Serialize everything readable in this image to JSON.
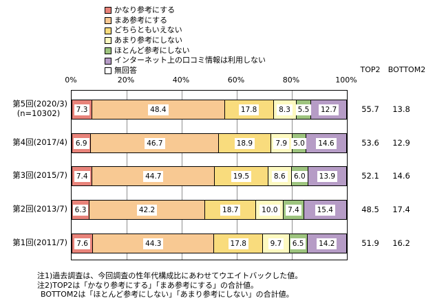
{
  "chart": {
    "legend": [
      {
        "label": "かなり参考にする",
        "color": "#e8837a"
      },
      {
        "label": "まあ参考にする",
        "color": "#f8c993"
      },
      {
        "label": "どちらともいえない",
        "color": "#f9dc7d"
      },
      {
        "label": "あまり参考にしない",
        "color": "#fdf9c0"
      },
      {
        "label": "ほとんど参考にしない",
        "color": "#9ec47f"
      },
      {
        "label": "インターネット上の口コミ情報は利用しない",
        "color": "#b69cc6"
      },
      {
        "label": "無回答",
        "color": "#ffffff"
      }
    ],
    "axis_ticks": [
      "0%",
      "20%",
      "40%",
      "60%",
      "80%",
      "100%"
    ],
    "summary_headers": {
      "top2": "TOP2",
      "bottom2": "BOTTOM2"
    },
    "rows": [
      {
        "label": "第5回(2020/3)",
        "sublabel": "(n=10302)",
        "segments": [
          "7.3",
          "48.4",
          "17.8",
          "8.3",
          "5.5",
          "12.7"
        ],
        "top2": "55.7",
        "bottom2": "13.8"
      },
      {
        "label": "第4回(2017/4)",
        "sublabel": "",
        "segments": [
          "6.9",
          "46.7",
          "18.9",
          "7.9",
          "5.0",
          "14.6"
        ],
        "top2": "53.6",
        "bottom2": "12.9"
      },
      {
        "label": "第3回(2015/7)",
        "sublabel": "",
        "segments": [
          "7.4",
          "44.7",
          "19.5",
          "8.6",
          "6.0",
          "13.9"
        ],
        "top2": "52.1",
        "bottom2": "14.6"
      },
      {
        "label": "第2回(2013/7)",
        "sublabel": "",
        "segments": [
          "6.3",
          "42.2",
          "18.7",
          "10.0",
          "7.4",
          "15.4"
        ],
        "top2": "48.5",
        "bottom2": "17.4"
      },
      {
        "label": "第1回(2011/7)",
        "sublabel": "",
        "segments": [
          "7.6",
          "44.3",
          "17.8",
          "9.7",
          "6.5",
          "14.2"
        ],
        "top2": "51.9",
        "bottom2": "16.2"
      }
    ],
    "footnotes": [
      "注1)過去調査は、今回調査の性年代構成比にあわせてウエイトバックした値。",
      "注2)TOP2は「かなり参考にする」「まあ参考にする」の合計値。",
      "BOTTOM2は「ほとんど参考にしない」「あまり参考にしない」の合計値。"
    ],
    "colors": {
      "segment_border": "#000000",
      "gridline": "#8f8f8f",
      "plot_border": "#000000"
    }
  },
  "chart_data": {
    "type": "bar",
    "stacked": true,
    "orientation": "horizontal",
    "title": "",
    "xlabel": "",
    "ylabel": "",
    "xlim": [
      0,
      100
    ],
    "x_tick_labels": [
      "0%",
      "20%",
      "40%",
      "60%",
      "80%",
      "100%"
    ],
    "grid": true,
    "legend_position": "top-left",
    "categories": [
      "第5回(2020/3) (n=10302)",
      "第4回(2017/4)",
      "第3回(2015/7)",
      "第2回(2013/7)",
      "第1回(2011/7)"
    ],
    "series": [
      {
        "name": "かなり参考にする",
        "color": "#e8837a",
        "values": [
          7.3,
          6.9,
          7.4,
          6.3,
          7.6
        ]
      },
      {
        "name": "まあ参考にする",
        "color": "#f8c993",
        "values": [
          48.4,
          46.7,
          44.7,
          42.2,
          44.3
        ]
      },
      {
        "name": "どちらともいえない",
        "color": "#f9dc7d",
        "values": [
          17.8,
          18.9,
          19.5,
          18.7,
          17.8
        ]
      },
      {
        "name": "あまり参考にしない",
        "color": "#fdf9c0",
        "values": [
          8.3,
          7.9,
          8.6,
          10.0,
          9.7
        ]
      },
      {
        "name": "ほとんど参考にしない",
        "color": "#9ec47f",
        "values": [
          5.5,
          5.0,
          6.0,
          7.4,
          6.5
        ]
      },
      {
        "name": "インターネット上の口コミ情報は利用しない",
        "color": "#b69cc6",
        "values": [
          12.7,
          14.6,
          13.9,
          15.4,
          14.2
        ]
      },
      {
        "name": "無回答",
        "color": "#ffffff",
        "values": [
          0,
          0,
          0,
          0,
          0
        ]
      }
    ],
    "summary": {
      "TOP2": [
        55.7,
        53.6,
        52.1,
        48.5,
        51.9
      ],
      "BOTTOM2": [
        13.8,
        12.9,
        14.6,
        17.4,
        16.2
      ]
    }
  }
}
